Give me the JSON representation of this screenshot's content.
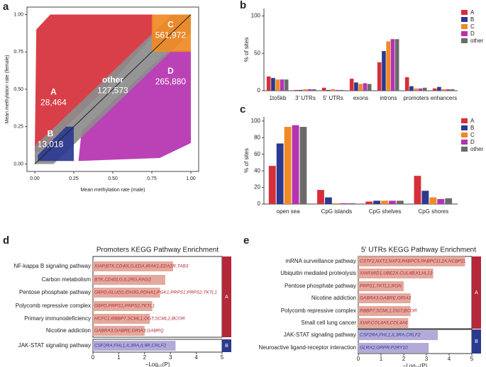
{
  "chart_data": [
    {
      "type": "scatter",
      "panel": "a",
      "xlabel": "Mean methylation rate (male)",
      "ylabel": "Mean methylation rate (female)",
      "xlim": [
        -0.05,
        1.05
      ],
      "ylim": [
        -0.05,
        1.05
      ],
      "xticks": [
        {
          "value": 0,
          "label": "0.00"
        },
        {
          "value": 0.25,
          "label": "0.25"
        },
        {
          "value": 0.5,
          "label": "0.50"
        },
        {
          "value": 0.75,
          "label": "0.75"
        },
        {
          "value": 1,
          "label": "1.00"
        }
      ],
      "yticks": [
        {
          "value": 0,
          "label": "0.00"
        },
        {
          "value": 0.25,
          "label": "0.25"
        },
        {
          "value": 0.5,
          "label": "0.50"
        },
        {
          "value": 0.75,
          "label": "0.75"
        },
        {
          "value": 1,
          "label": "1.00"
        }
      ],
      "regions": [
        {
          "name": "A",
          "label": "28,464",
          "color": "#d62f3a"
        },
        {
          "name": "B",
          "label": "13,018",
          "color": "#2b3a8f"
        },
        {
          "name": "C",
          "label": "561,972",
          "color": "#f08a24"
        },
        {
          "name": "D",
          "label": "265,880",
          "color": "#b532b0"
        },
        {
          "name": "other",
          "label": "127,573",
          "color": "#8c8c8c"
        }
      ]
    },
    {
      "type": "bar",
      "panel": "b",
      "ylabel": "% of sites",
      "ylim": [
        0,
        110
      ],
      "yticks": [
        0,
        50,
        100
      ],
      "categories": [
        "1to5kb",
        "3' UTRs",
        "5' UTRs",
        "exons",
        "introns",
        "promoters",
        "enhancers"
      ],
      "series": [
        {
          "name": "A",
          "color": "#d62f3a",
          "values": [
            19,
            1,
            4,
            16,
            38,
            18,
            3
          ]
        },
        {
          "name": "B",
          "color": "#2b3a8f",
          "values": [
            17,
            1,
            1,
            11,
            53,
            6,
            5
          ]
        },
        {
          "name": "C",
          "color": "#f08a24",
          "values": [
            15,
            2,
            2,
            9,
            66,
            3,
            2
          ]
        },
        {
          "name": "D",
          "color": "#b532b0",
          "values": [
            15,
            2,
            1,
            10,
            69,
            3,
            2
          ]
        },
        {
          "name": "other",
          "color": "#6b6b6b",
          "values": [
            15,
            2,
            1,
            9,
            69,
            4,
            2
          ]
        }
      ]
    },
    {
      "type": "bar",
      "panel": "c",
      "ylabel": "% of sites",
      "ylim": [
        0,
        105
      ],
      "yticks": [
        0,
        20,
        40,
        60,
        80,
        100
      ],
      "categories": [
        "open sea",
        "CpG islands",
        "CpG shelves",
        "CpG shores"
      ],
      "series": [
        {
          "name": "A",
          "color": "#d62f3a",
          "values": [
            46,
            17,
            3,
            34
          ]
        },
        {
          "name": "B",
          "color": "#2b3a8f",
          "values": [
            73,
            8,
            4,
            16
          ]
        },
        {
          "name": "C",
          "color": "#f08a24",
          "values": [
            93,
            1,
            4,
            8
          ]
        },
        {
          "name": "D",
          "color": "#b532b0",
          "values": [
            95,
            1,
            4,
            6
          ]
        },
        {
          "name": "other",
          "color": "#6b6b6b",
          "values": [
            93,
            1,
            4,
            7
          ]
        }
      ]
    },
    {
      "type": "barh",
      "panel": "d",
      "title": "Promoters KEGG Pathway Enrichment",
      "xlabel": "−Log₁₀(P)",
      "xlim": [
        0,
        5
      ],
      "xticks": [
        0,
        1,
        2,
        3,
        4,
        5
      ],
      "groups": [
        {
          "name": "A",
          "color": "#b5283a",
          "bar_color": "#e3a99c",
          "rows": [
            {
              "pathway": "NF-kappa B signaling pathway",
              "genes": "XIAP,BTK,CD40LG,EDA,IRAK1,EDA2R,TAB3",
              "value": 3.1
            },
            {
              "pathway": "Carbon metabolism",
              "genes": "BTK,CD40LG,IL2RG,RAG2",
              "value": 2.8
            },
            {
              "pathway": "Pentose phosphate pathway",
              "genes": "G6PD,GLUD2,IDH3G,PDHA1,PGK1,PRPS1,PRPS2,TKTL1",
              "value": 2.6
            },
            {
              "pathway": "Polycomb repressive complex",
              "genes": "G6PD,PRPS1,PRPS2,TKTL1",
              "value": 2.3
            },
            {
              "pathway": "Primary immunodeficiency",
              "genes": "HCFC1,RBBP7,SCML1,OGT,SCML2,BCOR",
              "value": 2.2
            },
            {
              "pathway": "Nicotine addiction",
              "genes": "GABRA3,GABRE,GRIA3,GABRQ",
              "value": 2.0
            }
          ]
        },
        {
          "name": "B",
          "color": "#2b3a8f",
          "bar_color": "#b3aad8",
          "rows": [
            {
              "pathway": "JAK-STAT signaling pathway",
              "genes": "CSF2RA,FHL1,IL3RA,IL9R,CRLF2",
              "value": 3.2
            }
          ]
        }
      ]
    },
    {
      "type": "barh",
      "panel": "e",
      "title": "5' UTRs KEGG Pathway Enrichment",
      "xlabel": "−Log₁₀(P)",
      "xlim": [
        0,
        5
      ],
      "xticks": [
        0,
        1,
        2,
        3,
        4,
        5
      ],
      "groups": [
        {
          "name": "A",
          "color": "#b5283a",
          "bar_color": "#e3a99c",
          "rows": [
            {
              "pathway": "mRNA surveillance pathway",
              "genes": "CSTF2,NXT2,NXF3,PABPC5,PABPC1L2A,NCBP2L",
              "value": 4.7
            },
            {
              "pathway": "Ubiquitin mediated proteolysis",
              "genes": "XIAP,MID1,UBE2A,CUL4B,KLHL13",
              "value": 3.3
            },
            {
              "pathway": "Pentose phosphate pathway",
              "genes": "PRPS1,TKTL1,RGN",
              "value": 2.0
            },
            {
              "pathway": "Nicotine addiction",
              "genes": "GABRA3,GABRE,GRIA3",
              "value": 2.3
            },
            {
              "pathway": "Polycomb repressive complex",
              "genes": "RBBP7,SCML1,OGT,BCOR",
              "value": 2.3
            },
            {
              "pathway": "Small cell lung cancer",
              "genes": "XIAP,COL4A5,COL4A6",
              "value": 2.2
            }
          ]
        },
        {
          "name": "B",
          "color": "#2b3a8f",
          "bar_color": "#b3aad8",
          "rows": [
            {
              "pathway": "JAK-STAT signaling pathway",
              "genes": "CSF2RA,FHL1,IL3RA,CRLF2",
              "value": 3.5
            },
            {
              "pathway": "Neuroactive ligand-receptor interaction",
              "genes": "GLRA2,GRPR,P2RY10",
              "value": 3.1
            }
          ]
        }
      ]
    }
  ]
}
